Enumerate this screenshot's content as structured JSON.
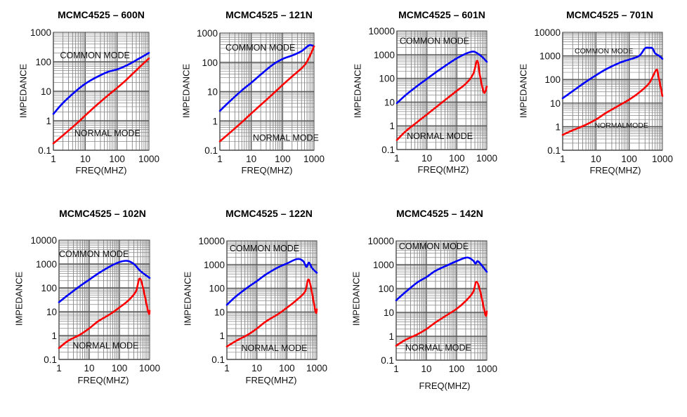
{
  "chart_data": [
    {
      "type": "line",
      "title": "MCMC4525 – 600N",
      "xlabel": "FREQ(MHZ)",
      "ylabel": "IMPEDANCE",
      "xscale": "log",
      "yscale": "log",
      "xlim": [
        1,
        1000
      ],
      "ylim": [
        0.1,
        1000
      ],
      "xticks": [
        "1",
        "10",
        "100",
        "1000"
      ],
      "yticks": [
        "0.1",
        "1",
        "10",
        "100",
        "1000"
      ],
      "grid": true,
      "annotations": [
        "COMMON MODE",
        "NORMAL MODE"
      ],
      "series": [
        {
          "name": "COMMON MODE",
          "color": "#0000ff",
          "x": [
            1,
            2,
            5,
            10,
            20,
            50,
            100,
            200,
            500,
            1000
          ],
          "y": [
            1.7,
            4,
            10,
            18,
            28,
            45,
            55,
            75,
            130,
            200
          ]
        },
        {
          "name": "NORMAL MODE",
          "color": "#ff0000",
          "x": [
            1,
            2,
            5,
            10,
            20,
            50,
            100,
            200,
            500,
            1000
          ],
          "y": [
            0.17,
            0.32,
            0.75,
            1.5,
            3,
            7,
            13,
            25,
            65,
            130
          ]
        }
      ]
    },
    {
      "type": "line",
      "title": "MCMC4525 – 121N",
      "xlabel": "FREQ(MHZ)",
      "ylabel": "IMPEDANCE",
      "xscale": "log",
      "yscale": "log",
      "xlim": [
        1,
        1000
      ],
      "ylim": [
        0.1,
        1000
      ],
      "xticks": [
        "1",
        "10",
        "100",
        "1000"
      ],
      "yticks": [
        "0.1",
        "1",
        "10",
        "100",
        "1000"
      ],
      "grid": true,
      "annotations": [
        "COMMON MODE",
        "NORMAL MODE"
      ],
      "series": [
        {
          "name": "COMMON MODE",
          "color": "#0000ff",
          "x": [
            1,
            2,
            5,
            10,
            20,
            50,
            100,
            200,
            400,
            700,
            1000
          ],
          "y": [
            2.2,
            4.5,
            11,
            20,
            38,
            85,
            130,
            170,
            240,
            380,
            350
          ]
        },
        {
          "name": "NORMAL MODE",
          "color": "#ff0000",
          "x": [
            1,
            2,
            5,
            10,
            20,
            50,
            100,
            200,
            500,
            800,
            1000
          ],
          "y": [
            0.2,
            0.38,
            0.9,
            1.8,
            3.5,
            8.5,
            17,
            33,
            80,
            200,
            350
          ]
        }
      ]
    },
    {
      "type": "line",
      "title": "MCMC4525 – 601N",
      "xlabel": "FREQ(MHZ)",
      "ylabel": "IMPEDANCE",
      "xscale": "log",
      "yscale": "log",
      "xlim": [
        1,
        1000
      ],
      "ylim": [
        0.1,
        10000
      ],
      "xticks": [
        "1",
        "10",
        "100",
        "1000"
      ],
      "yticks": [
        "0.1",
        "1",
        "10",
        "100",
        "1000",
        "10000"
      ],
      "grid": true,
      "annotations": [
        "COMMON MODE",
        "NORMAL MODE"
      ],
      "series": [
        {
          "name": "COMMON MODE",
          "color": "#0000ff",
          "x": [
            1,
            2,
            5,
            10,
            20,
            50,
            100,
            200,
            350,
            500,
            700,
            1000
          ],
          "y": [
            9,
            20,
            50,
            95,
            180,
            400,
            700,
            1100,
            1350,
            1100,
            800,
            500
          ]
        },
        {
          "name": "NORMAL MODE",
          "color": "#ff0000",
          "x": [
            1,
            2,
            5,
            10,
            20,
            50,
            100,
            200,
            350,
            480,
            600,
            800,
            1000
          ],
          "y": [
            0.25,
            0.6,
            1.5,
            3,
            6,
            15,
            30,
            60,
            150,
            550,
            120,
            25,
            45
          ]
        }
      ]
    },
    {
      "type": "line",
      "title": "MCMC4525 – 701N",
      "xlabel": "FREQ(MHZ)",
      "ylabel": "IMPEDANCE",
      "xscale": "log",
      "yscale": "log",
      "xlim": [
        1,
        1000
      ],
      "ylim": [
        0.1,
        10000
      ],
      "xticks": [
        "1",
        "10",
        "100",
        "1000"
      ],
      "yticks": [
        "0.1",
        "1",
        "10",
        "100",
        "1000",
        "10000"
      ],
      "grid": true,
      "annotations": [
        "COMMON MODE",
        "NORMALMODE"
      ],
      "series": [
        {
          "name": "COMMON MODE",
          "color": "#0000ff",
          "x": [
            1,
            2,
            5,
            10,
            20,
            50,
            100,
            200,
            300,
            400,
            500,
            600,
            800,
            1000
          ],
          "y": [
            16,
            32,
            80,
            150,
            270,
            500,
            700,
            1000,
            2100,
            2200,
            2100,
            1300,
            1000,
            750
          ]
        },
        {
          "name": "NORMAL MODE",
          "color": "#ff0000",
          "x": [
            1,
            2,
            5,
            10,
            20,
            50,
            100,
            200,
            400,
            650,
            750,
            1000
          ],
          "y": [
            0.45,
            0.7,
            1.2,
            2,
            3.8,
            8,
            14,
            28,
            70,
            250,
            150,
            20
          ]
        }
      ]
    },
    {
      "type": "line",
      "title": "MCMC4525 – 102N",
      "xlabel": "FREQ(MHZ)",
      "ylabel": "IMPEDANCE",
      "xscale": "log",
      "yscale": "log",
      "xlim": [
        1,
        1000
      ],
      "ylim": [
        0.1,
        10000
      ],
      "xticks": [
        "1",
        "10",
        "100",
        "1000"
      ],
      "yticks": [
        "0.1",
        "1",
        "10",
        "100",
        "1000",
        "10000"
      ],
      "grid": true,
      "annotations": [
        "COMMON MODE",
        "NORMAL MODE"
      ],
      "series": [
        {
          "name": "COMMON MODE",
          "color": "#0000ff",
          "x": [
            1,
            2,
            5,
            10,
            20,
            50,
            100,
            180,
            300,
            500,
            1000
          ],
          "y": [
            25,
            50,
            120,
            220,
            400,
            800,
            1200,
            1350,
            1000,
            500,
            260
          ]
        },
        {
          "name": "NORMAL MODE",
          "color": "#ff0000",
          "x": [
            1,
            2,
            5,
            10,
            20,
            50,
            100,
            200,
            350,
            500,
            900,
            1000
          ],
          "y": [
            0.3,
            0.6,
            1.1,
            2,
            4,
            8,
            15,
            30,
            70,
            230,
            10,
            11
          ]
        }
      ]
    },
    {
      "type": "line",
      "title": "MCMC4525 – 122N",
      "xlabel": "FREQ(MHZ)",
      "ylabel": "IMPEDANCE",
      "xscale": "log",
      "yscale": "log",
      "xlim": [
        1,
        1000
      ],
      "ylim": [
        0.1,
        10000
      ],
      "xticks": [
        "1",
        "10",
        "100",
        "1000"
      ],
      "yticks": [
        "0.1",
        "1",
        "10",
        "100",
        "1000",
        "10000"
      ],
      "grid": true,
      "annotations": [
        "COMMON MODE",
        "NORMAL MODE"
      ],
      "series": [
        {
          "name": "COMMON MODE",
          "color": "#0000ff",
          "x": [
            1,
            2,
            5,
            10,
            20,
            50,
            100,
            220,
            350,
            450,
            550,
            700,
            1000
          ],
          "y": [
            20,
            45,
            110,
            200,
            380,
            750,
            1100,
            1700,
            1400,
            800,
            1200,
            700,
            450
          ]
        },
        {
          "name": "NORMAL MODE",
          "color": "#ff0000",
          "x": [
            1,
            2,
            5,
            10,
            20,
            50,
            100,
            200,
            400,
            550,
            900,
            1000
          ],
          "y": [
            0.35,
            0.6,
            1.1,
            2,
            4,
            8,
            15,
            30,
            70,
            220,
            11,
            13
          ]
        }
      ]
    },
    {
      "type": "line",
      "title": "MCMC4525 – 142N",
      "xlabel": "FREQ(MHZ)",
      "ylabel": "IMPEDANCE",
      "xscale": "log",
      "yscale": "log",
      "xlim": [
        1,
        1000
      ],
      "ylim": [
        0.1,
        10000
      ],
      "xticks": [
        "1",
        "10",
        "100",
        "1000"
      ],
      "yticks": [
        "0.1",
        "1",
        "10",
        "100",
        "1000",
        "10000"
      ],
      "grid": true,
      "annotations": [
        "COMMON MODE",
        "NORMAL MODE"
      ],
      "series": [
        {
          "name": "COMMON MODE",
          "color": "#0000ff",
          "x": [
            1,
            2,
            5,
            10,
            20,
            50,
            100,
            220,
            350,
            420,
            500,
            700,
            1000
          ],
          "y": [
            32,
            70,
            180,
            300,
            550,
            950,
            1400,
            2000,
            1500,
            1100,
            1400,
            900,
            500
          ]
        },
        {
          "name": "NORMAL MODE",
          "color": "#ff0000",
          "x": [
            1,
            2,
            5,
            10,
            20,
            50,
            100,
            200,
            350,
            450,
            600,
            900,
            1000
          ],
          "y": [
            0.4,
            0.7,
            1.2,
            2,
            3.8,
            8,
            14,
            30,
            70,
            190,
            80,
            8,
            11
          ]
        }
      ]
    }
  ]
}
